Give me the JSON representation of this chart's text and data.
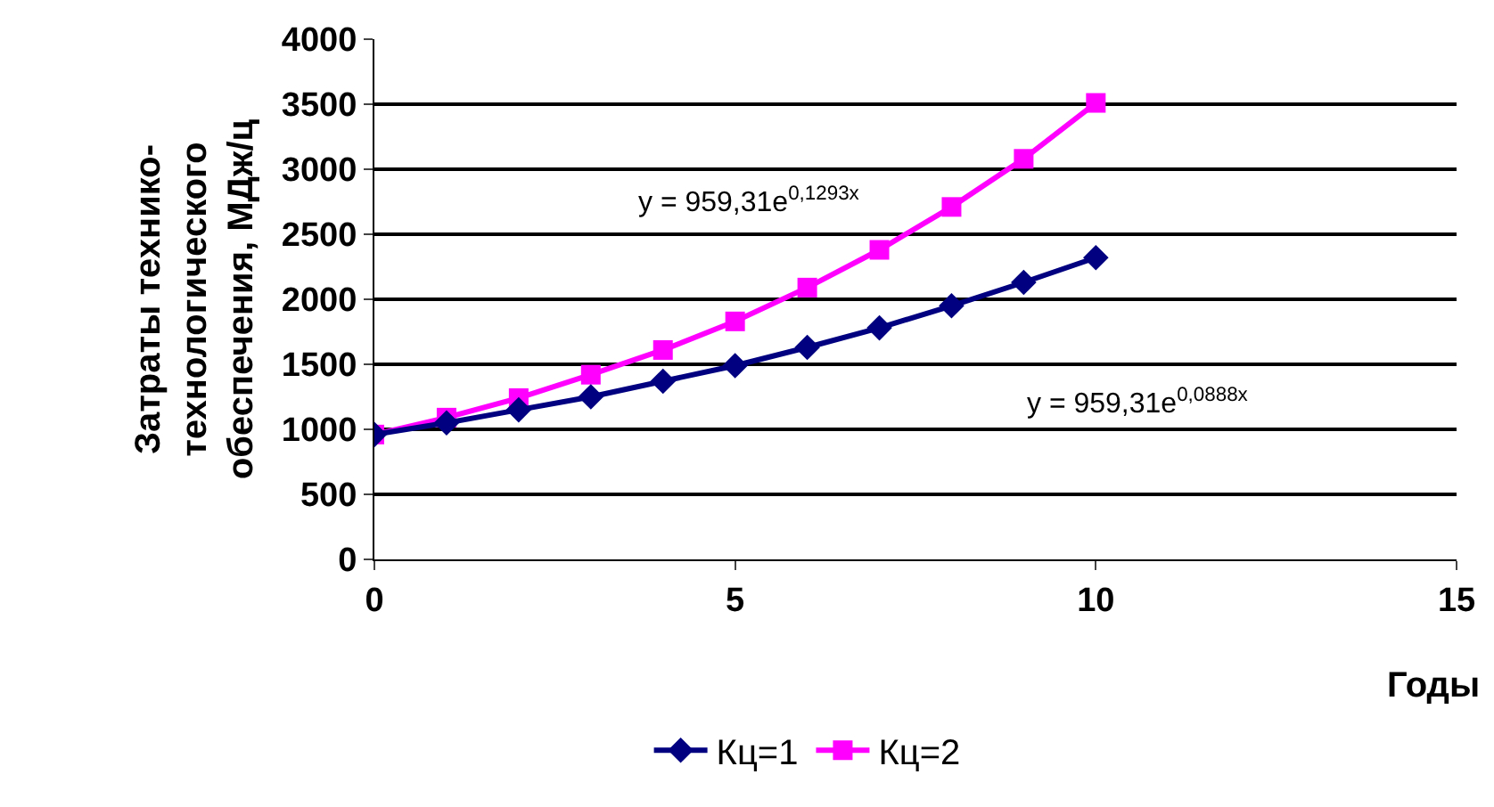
{
  "chart_data": {
    "type": "line",
    "xlabel": "Годы",
    "ylabel": "Затраты технико-\nтехнологического\nобеспечения, МДж/ц",
    "x": [
      0,
      1,
      2,
      3,
      4,
      5,
      6,
      7,
      8,
      9,
      10
    ],
    "series": [
      {
        "name": "Кц=1",
        "color": "#000080",
        "marker": "diamond",
        "values": [
          960,
          1050,
          1150,
          1250,
          1370,
          1490,
          1630,
          1780,
          1950,
          2130,
          2320
        ]
      },
      {
        "name": "Кц=2",
        "color": "#ff00ff",
        "marker": "square",
        "values": [
          960,
          1090,
          1240,
          1420,
          1610,
          1830,
          2090,
          2380,
          2710,
          3080,
          3510
        ]
      }
    ],
    "annotations": [
      "y = 959,31e$^{0,1293x}$",
      "y = 959,31e$^{0,0888x}$"
    ],
    "xlim": [
      0,
      15
    ],
    "xticks": [
      0,
      5,
      10,
      15
    ],
    "ylim": [
      0,
      4000
    ],
    "yticks": [
      0,
      500,
      1000,
      1500,
      2000,
      2500,
      3000,
      3500,
      4000
    ],
    "grid": "y",
    "legend": "bottom",
    "line_style": "solid"
  }
}
